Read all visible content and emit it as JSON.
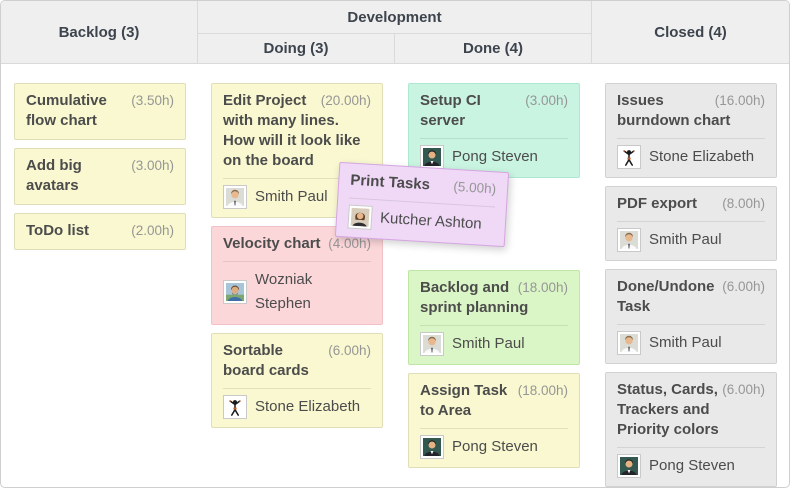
{
  "board": {
    "group_header": {
      "label": "Development"
    },
    "columns": [
      {
        "id": "backlog",
        "header": "Backlog (3)",
        "cards": [
          {
            "title": "Cumulative flow chart",
            "hours": "(3.50h)",
            "color": "yellow"
          },
          {
            "title": "Add big avatars",
            "hours": "(3.00h)",
            "color": "yellow"
          },
          {
            "title": "ToDo list",
            "hours": "(2.00h)",
            "color": "yellow"
          }
        ]
      },
      {
        "id": "doing",
        "header": "Doing (3)",
        "cards": [
          {
            "title": "Edit Project with many lines. How will it look like on the board",
            "title_lines": [
              "Edit Project",
              "with many lines.",
              "How will it look like",
              "on the board"
            ],
            "hours": "(20.00h)",
            "color": "yellow",
            "assignee": "Smith Paul",
            "avatar": "smith-paul"
          },
          {
            "title": "Velocity chart",
            "hours": "(4.00h)",
            "color": "red",
            "assignee": "Wozniak Stephen",
            "avatar": "wozniak-stephen"
          },
          {
            "title": "Sortable board cards",
            "hours": "(6.00h)",
            "color": "yellow",
            "assignee": "Stone Elizabeth",
            "avatar": "stone-elizabeth"
          }
        ]
      },
      {
        "id": "done",
        "header": "Done (4)",
        "cards": [
          {
            "title": "Setup CI server",
            "hours": "(3.00h)",
            "color": "teal",
            "assignee": "Pong Steven",
            "avatar": "pong-steven"
          },
          {
            "title": "Print Tasks",
            "hours": "(5.00h)",
            "color": "purple",
            "assignee": "Kutcher Ashton",
            "avatar": "kutcher-ashton",
            "dragging": true
          },
          {
            "title": "Backlog and sprint planning",
            "hours": "(18.00h)",
            "color": "green",
            "assignee": "Smith Paul",
            "avatar": "smith-paul"
          },
          {
            "title": "Assign Task to Area",
            "hours": "(18.00h)",
            "color": "yellow",
            "assignee": "Pong Steven",
            "avatar": "pong-steven"
          }
        ]
      },
      {
        "id": "closed",
        "header": "Closed (4)",
        "cards": [
          {
            "title": "Issues burndown chart",
            "hours": "(16.00h)",
            "color": "gray",
            "assignee": "Stone Elizabeth",
            "avatar": "stone-elizabeth"
          },
          {
            "title": "PDF export",
            "hours": "(8.00h)",
            "color": "gray",
            "assignee": "Smith Paul",
            "avatar": "smith-paul"
          },
          {
            "title": "Done/Undone Task",
            "hours": "(6.00h)",
            "color": "gray",
            "assignee": "Smith Paul",
            "avatar": "smith-paul"
          },
          {
            "title": "Status, Cards, Trackers and Priority colors",
            "hours": "(6.00h)",
            "color": "gray",
            "assignee": "Pong Steven",
            "avatar": "pong-steven"
          }
        ]
      }
    ]
  },
  "colors": {
    "yellow_bg": "#f9f8d0",
    "yellow_border": "#e0deb8",
    "red_bg": "#fcd7da",
    "red_border": "#f0c2c7",
    "teal_bg": "#c9f4e1",
    "teal_border": "#aee8d0",
    "green_bg": "#dbf6c6",
    "green_border": "#c0e6a5",
    "purple_bg": "#efd9f6",
    "purple_border": "#d6a5e2",
    "gray_bg": "#e9e9e9",
    "gray_border": "#d2d2d2",
    "header_bg": "#efefef",
    "header_border": "#dadada",
    "header_text": "#3d444d",
    "board_border": "#cfcfcf"
  }
}
